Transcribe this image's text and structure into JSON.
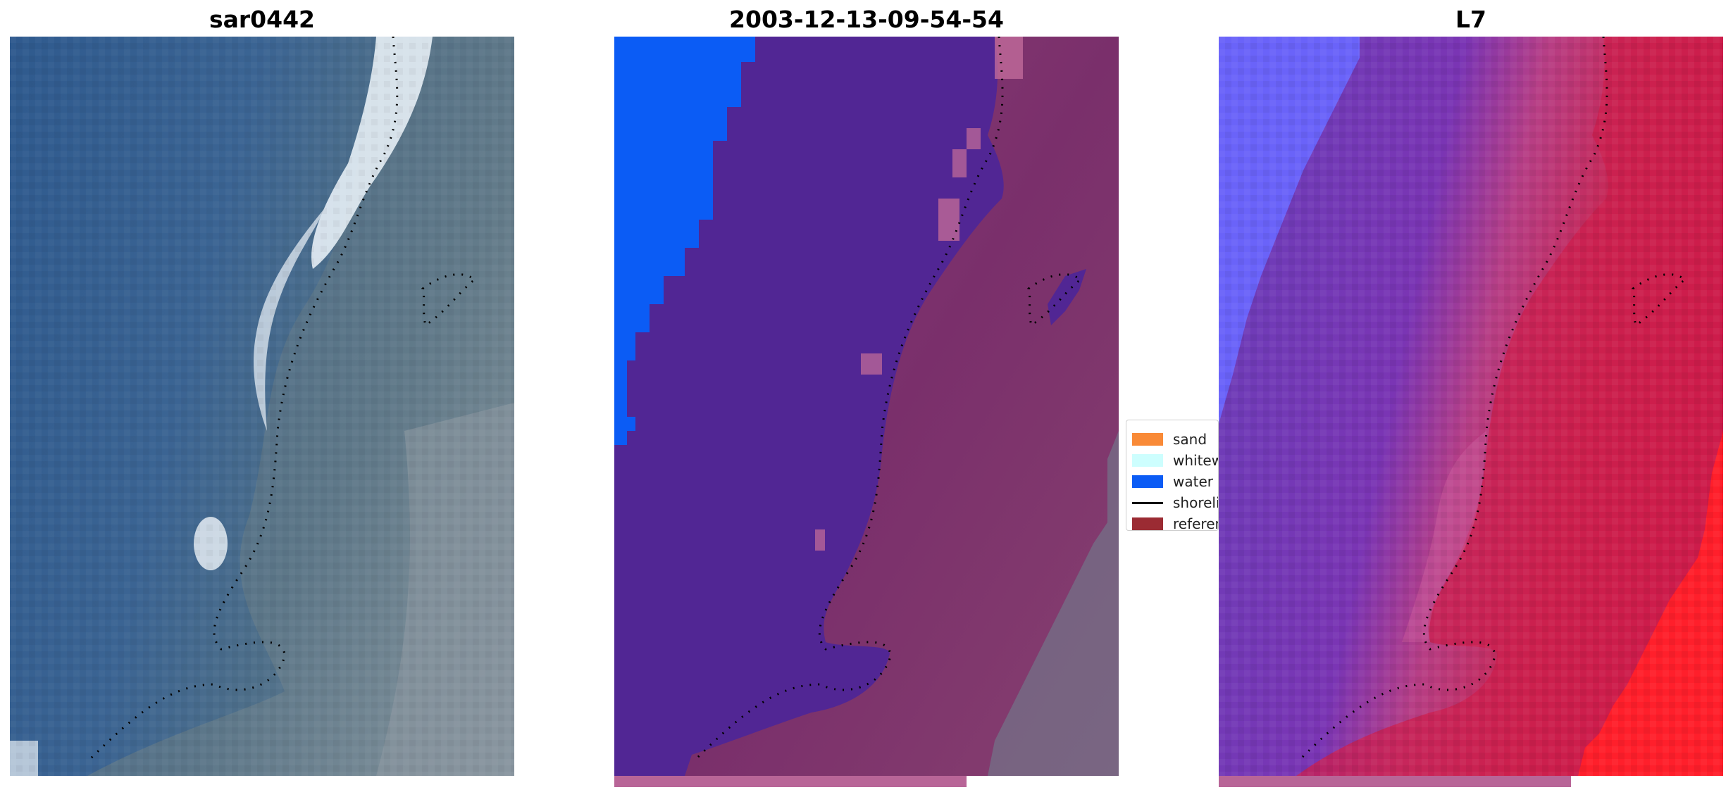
{
  "panels": [
    {
      "title": "sar0442",
      "icon": "satellite-rgb-image"
    },
    {
      "title": "2003-12-13-09-54-54",
      "icon": "classified-image"
    },
    {
      "title": "L7",
      "icon": "mndwi-image"
    }
  ],
  "legend": {
    "items": [
      {
        "label": "sand",
        "color": "#f98a37",
        "kind": "patch"
      },
      {
        "label": "whitewater",
        "color": "#cdfefe",
        "kind": "patch"
      },
      {
        "label": "water",
        "color": "#0b5cf5",
        "kind": "patch"
      },
      {
        "label": "shoreline",
        "color": "#000000",
        "kind": "line"
      },
      {
        "label": "reference shoreline",
        "color": "#9b2b33",
        "kind": "patch"
      }
    ]
  },
  "colors": {
    "ocean_blue": "#3b6493",
    "land_grey": "#6f8591",
    "surf_white": "#e6eef5",
    "class_purple": "#512694",
    "class_land": "#7a2f6b",
    "water_blue": "#0b5cf5",
    "strip_pink": "#b86597",
    "index_purple": "#7a35b4",
    "index_red": "#d01643",
    "index_blue": "#6a63f9",
    "index_bright_red": "#ff1f2b"
  }
}
